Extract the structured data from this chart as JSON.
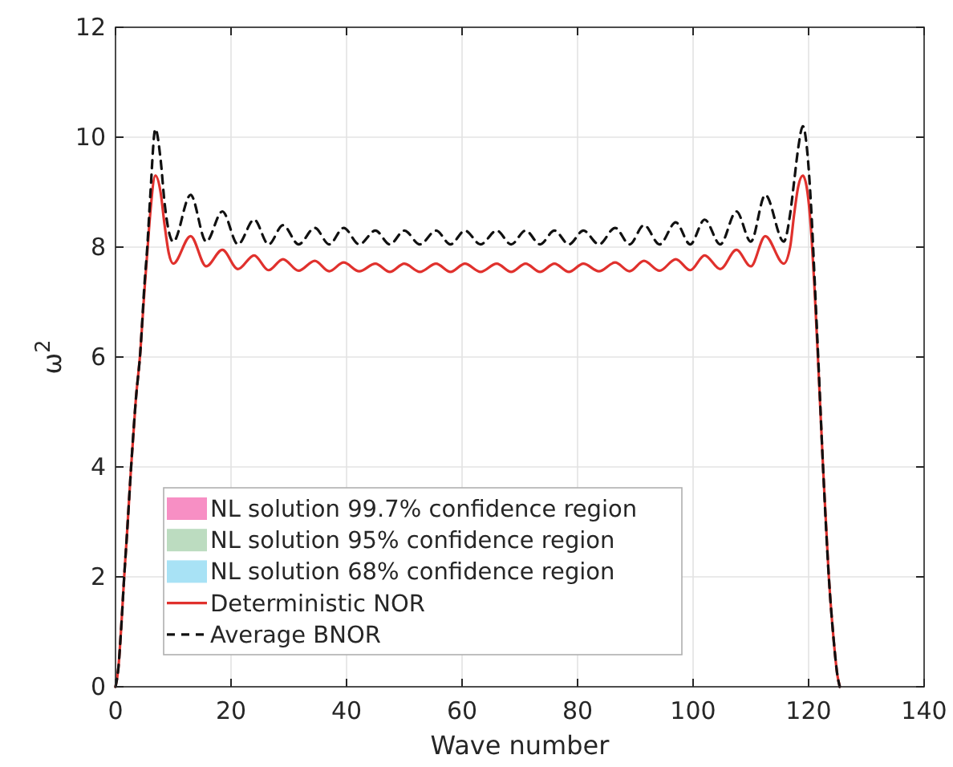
{
  "chart_data": {
    "type": "line",
    "xlabel": "Wave number",
    "ylabel": "ω$^{2}$",
    "xlim": [
      0,
      140
    ],
    "ylim": [
      0,
      12
    ],
    "xticks": [
      0,
      20,
      40,
      60,
      80,
      100,
      120,
      140
    ],
    "yticks": [
      0,
      2,
      4,
      6,
      8,
      10,
      12
    ],
    "grid": true,
    "legend": "bottom left",
    "x": [
      0,
      0.5,
      1,
      1.5,
      2,
      2.7,
      3.5,
      4.3,
      5,
      5.5,
      6,
      6.9,
      7.8,
      8.5,
      9.2,
      10,
      13,
      15.7,
      18.5,
      21.2,
      24,
      26.5,
      29,
      31.7,
      34.5,
      37,
      39.5,
      42.2,
      45,
      47.5,
      50,
      52.7,
      55.5,
      58,
      60.5,
      63.2,
      66,
      68.5,
      71,
      73.5,
      76,
      78.5,
      81,
      83.7,
      86.5,
      89,
      91.5,
      94.2,
      97,
      99.5,
      102,
      104.7,
      107.5,
      110,
      112.5,
      115.7,
      116.8,
      117.5,
      118.2,
      119,
      119.8,
      120.5,
      121,
      121.7,
      122.5,
      123.5,
      124.3,
      125,
      125.4
    ],
    "series": [
      {
        "name": "NL solution 99.7% confidence region",
        "type": "area",
        "color": "#f78fc4",
        "values": [
          null,
          null,
          null,
          null,
          null,
          null,
          null,
          null,
          null,
          null,
          null,
          null,
          null,
          null,
          null,
          null,
          null,
          null,
          null,
          null,
          null,
          null,
          null,
          null,
          null,
          null,
          null,
          null,
          null,
          null,
          null,
          null,
          null,
          null,
          null,
          null,
          null,
          null,
          null,
          null,
          null,
          null,
          null,
          null,
          null,
          null,
          null,
          null,
          null,
          null,
          null,
          null,
          null,
          null,
          null,
          null,
          null,
          null,
          null,
          null,
          null,
          null,
          null,
          null,
          null,
          null,
          null,
          null,
          null
        ]
      },
      {
        "name": "NL solution 95% confidence region",
        "type": "area",
        "color": "#bcdcc0",
        "values": [
          null,
          null,
          null,
          null,
          null,
          null,
          null,
          null,
          null,
          null,
          null,
          null,
          null,
          null,
          null,
          null,
          null,
          null,
          null,
          null,
          null,
          null,
          null,
          null,
          null,
          null,
          null,
          null,
          null,
          null,
          null,
          null,
          null,
          null,
          null,
          null,
          null,
          null,
          null,
          null,
          null,
          null,
          null,
          null,
          null,
          null,
          null,
          null,
          null,
          null,
          null,
          null,
          null,
          null,
          null,
          null,
          null,
          null,
          null,
          null,
          null,
          null,
          null,
          null,
          null,
          null,
          null,
          null,
          null
        ]
      },
      {
        "name": "NL solution 68% confidence region",
        "type": "area",
        "color": "#a8e2f5",
        "values": [
          null,
          null,
          null,
          null,
          null,
          null,
          null,
          null,
          null,
          null,
          null,
          null,
          null,
          null,
          null,
          null,
          null,
          null,
          null,
          null,
          null,
          null,
          null,
          null,
          null,
          null,
          null,
          null,
          null,
          null,
          null,
          null,
          null,
          null,
          null,
          null,
          null,
          null,
          null,
          null,
          null,
          null,
          null,
          null,
          null,
          null,
          null,
          null,
          null,
          null,
          null,
          null,
          null,
          null,
          null,
          null,
          null,
          null,
          null,
          null,
          null,
          null,
          null,
          null,
          null,
          null,
          null,
          null,
          null
        ]
      },
      {
        "name": "Deterministic NOR",
        "color": "#e0312d",
        "line_style": "solid",
        "values": [
          0,
          0.35,
          1.1,
          2,
          2.8,
          4,
          5.2,
          6.1,
          7.2,
          7.9,
          8.6,
          9.3,
          9,
          8.4,
          7.9,
          7.7,
          8.2,
          7.65,
          7.95,
          7.6,
          7.85,
          7.58,
          7.78,
          7.57,
          7.75,
          7.56,
          7.72,
          7.56,
          7.7,
          7.55,
          7.7,
          7.55,
          7.7,
          7.55,
          7.7,
          7.55,
          7.7,
          7.55,
          7.7,
          7.55,
          7.7,
          7.55,
          7.7,
          7.56,
          7.72,
          7.56,
          7.75,
          7.57,
          7.78,
          7.58,
          7.85,
          7.6,
          7.95,
          7.65,
          8.2,
          7.7,
          8,
          8.6,
          9.1,
          9.3,
          9,
          8.2,
          7.3,
          5.8,
          4,
          2,
          0.9,
          0.2,
          0
        ]
      },
      {
        "name": "Average BNOR",
        "color": "#111111",
        "line_style": "dashed",
        "values": [
          0,
          0.35,
          1.1,
          2,
          2.8,
          4,
          5.2,
          6.1,
          7.3,
          8,
          8.9,
          10.15,
          9.6,
          8.8,
          8.3,
          8.1,
          8.95,
          8.1,
          8.65,
          8.05,
          8.5,
          8.05,
          8.4,
          8.05,
          8.35,
          8.05,
          8.35,
          8.05,
          8.3,
          8.05,
          8.3,
          8.05,
          8.3,
          8.05,
          8.3,
          8.05,
          8.3,
          8.05,
          8.3,
          8.05,
          8.3,
          8.05,
          8.3,
          8.05,
          8.35,
          8.05,
          8.4,
          8.05,
          8.45,
          8.05,
          8.5,
          8.05,
          8.65,
          8.1,
          8.95,
          8.1,
          8.6,
          9.2,
          9.8,
          10.2,
          9.7,
          8.6,
          7.5,
          5.9,
          4,
          2,
          0.9,
          0.2,
          0
        ]
      }
    ]
  }
}
